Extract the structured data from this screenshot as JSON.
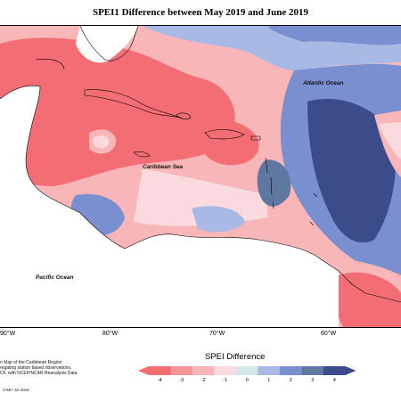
{
  "title": "SPEI1 Difference between May 2019 and June 2019",
  "labels": {
    "atlantic": "Atlantic Ocean",
    "caribbean": "Caribbean Sea",
    "pacific": "Pacific Ocean"
  },
  "longitudes": [
    "90°W",
    "80°W",
    "70°W",
    "60°W"
  ],
  "footnote": {
    "line1": "n Map of the Caribbean Region",
    "line2": "regating station based observations,",
    "line3": "CF, with NCEP/NCAR Reanalysis Data."
  },
  "credit": "CIMH Jul 2019",
  "legend": {
    "title": "SPEI Difference",
    "ticks": [
      "-4",
      "-3",
      "-2",
      "-1",
      "0",
      "1",
      "2",
      "3",
      "4"
    ],
    "colors": [
      "#f36d74",
      "#f6959a",
      "#f8b6b9",
      "#fadade",
      "#d4e6ea",
      "#a9b9e6",
      "#7a8fd0",
      "#5f78a2",
      "#3c4c8a"
    ]
  }
}
